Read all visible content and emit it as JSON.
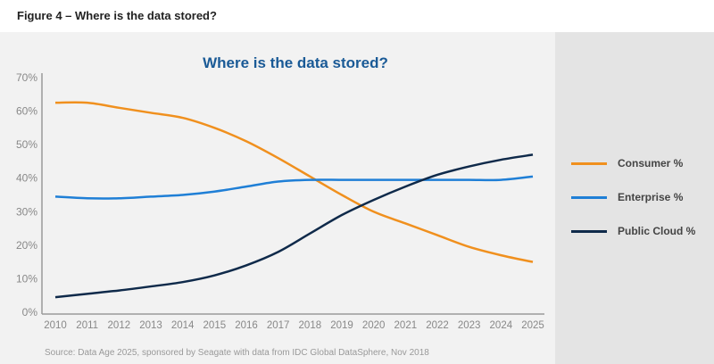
{
  "figure_label": "Figure 4 – Where is the data stored?",
  "chart_data": {
    "type": "line",
    "title": "Where is the data stored?",
    "xlabel": "",
    "ylabel": "",
    "x": [
      "2010",
      "2011",
      "2012",
      "2013",
      "2014",
      "2015",
      "2016",
      "2017",
      "2018",
      "2019",
      "2020",
      "2021",
      "2022",
      "2023",
      "2024",
      "2025"
    ],
    "yticks": [
      "0%",
      "10%",
      "20%",
      "30%",
      "40%",
      "50%",
      "60%",
      "70%"
    ],
    "ylim": [
      0,
      70
    ],
    "grid": false,
    "legend_position": "right",
    "series": [
      {
        "name": "Consumer %",
        "color": "#f0901e",
        "values": [
          62.5,
          62.5,
          61,
          59.5,
          58,
          55,
          51,
          46,
          40.5,
          35,
          30,
          26.5,
          23,
          19.5,
          17,
          15
        ]
      },
      {
        "name": "Enterprise %",
        "color": "#1f7fd6",
        "values": [
          34.5,
          34,
          34,
          34.5,
          35,
          36,
          37.5,
          39,
          39.5,
          39.5,
          39.5,
          39.5,
          39.5,
          39.5,
          39.5,
          40.5
        ]
      },
      {
        "name": "Public Cloud %",
        "color": "#0f2a4a",
        "values": [
          4.5,
          5.5,
          6.5,
          7.7,
          9,
          11,
          14,
          18,
          23.5,
          29,
          33.5,
          37.5,
          41,
          43.5,
          45.5,
          47
        ]
      }
    ],
    "source": "Source: Data Age 2025, sponsored by Seagate with data from IDC Global DataSphere, Nov 2018"
  }
}
